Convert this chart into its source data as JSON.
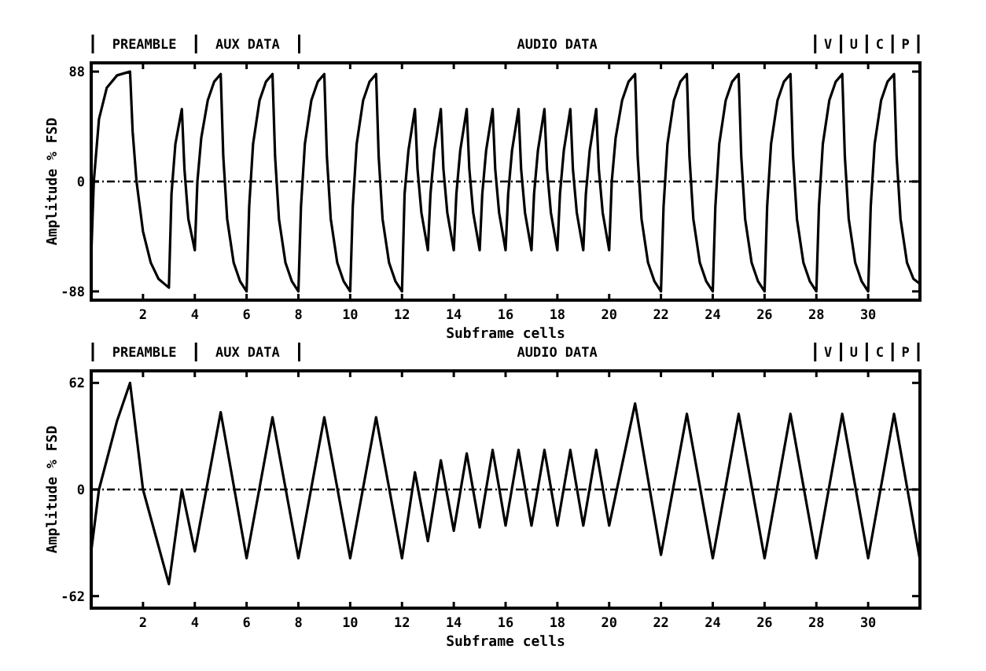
{
  "chart_data": [
    {
      "type": "line",
      "xlabel": "Subframe cells",
      "ylabel": "Amplitude % FSD",
      "xlim": [
        0,
        32
      ],
      "xticks": [
        2,
        4,
        6,
        8,
        10,
        12,
        14,
        16,
        18,
        20,
        22,
        24,
        26,
        28,
        30
      ],
      "ylim": [
        -95,
        95
      ],
      "yticks": [
        -88,
        0,
        88
      ],
      "ref_lines": [
        {
          "axis": "y",
          "value": 0,
          "line_style": "dashed"
        }
      ],
      "annotations": [
        "PREAMBLE",
        "AUX DATA",
        "AUDIO DATA",
        "V",
        "U",
        "C",
        "P"
      ],
      "series": [
        {
          "color": "#000000",
          "x": [
            0,
            0.1,
            0.3,
            0.6,
            1,
            1.5,
            1.6,
            1.75,
            2,
            2.3,
            2.6,
            3,
            3.1,
            3.25,
            3.5,
            3.6,
            3.75,
            4,
            4.1,
            4.25,
            4.5,
            4.75,
            5,
            5.1,
            5.25,
            5.5,
            5.75,
            6,
            6.1,
            6.25,
            6.5,
            6.75,
            7,
            7.1,
            7.25,
            7.5,
            7.75,
            8,
            8.1,
            8.25,
            8.5,
            8.75,
            9,
            9.1,
            9.25,
            9.5,
            9.75,
            10,
            10.1,
            10.25,
            10.5,
            10.75,
            11,
            11.1,
            11.25,
            11.5,
            11.75,
            12,
            12.1,
            12.25,
            12.5,
            12.6,
            12.75,
            13,
            13.1,
            13.25,
            13.5,
            13.6,
            13.75,
            14,
            14.1,
            14.25,
            14.5,
            14.6,
            14.75,
            15,
            15.1,
            15.25,
            15.5,
            15.6,
            15.75,
            16,
            16.1,
            16.25,
            16.5,
            16.6,
            16.75,
            17,
            17.1,
            17.25,
            17.5,
            17.6,
            17.75,
            18,
            18.1,
            18.25,
            18.5,
            18.6,
            18.75,
            19,
            19.1,
            19.25,
            19.5,
            19.6,
            19.75,
            20,
            20.1,
            20.25,
            20.5,
            20.75,
            21,
            21.1,
            21.25,
            21.5,
            21.75,
            22,
            22.1,
            22.25,
            22.5,
            22.75,
            23,
            23.1,
            23.25,
            23.5,
            23.75,
            24,
            24.1,
            24.25,
            24.5,
            24.75,
            25,
            25.1,
            25.25,
            25.5,
            25.75,
            26,
            26.1,
            26.25,
            26.5,
            26.75,
            27,
            27.1,
            27.25,
            27.5,
            27.75,
            28,
            28.1,
            28.25,
            28.5,
            28.75,
            29,
            29.1,
            29.25,
            29.5,
            29.75,
            30,
            30.1,
            30.25,
            30.5,
            30.75,
            31,
            31.1,
            31.25,
            31.5,
            31.75,
            32
          ],
          "values": [
            -60,
            0,
            50,
            75,
            85,
            88,
            40,
            0,
            -40,
            -65,
            -78,
            -85,
            -10,
            30,
            58,
            10,
            -30,
            -55,
            0,
            35,
            65,
            80,
            86,
            20,
            -30,
            -65,
            -80,
            -88,
            -20,
            30,
            65,
            80,
            86,
            20,
            -30,
            -65,
            -80,
            -88,
            -20,
            30,
            65,
            80,
            86,
            20,
            -30,
            -65,
            -80,
            -88,
            -20,
            30,
            65,
            80,
            86,
            20,
            -30,
            -65,
            -80,
            -88,
            -10,
            25,
            58,
            10,
            -25,
            -55,
            -10,
            25,
            58,
            10,
            -25,
            -55,
            -10,
            25,
            58,
            10,
            -25,
            -55,
            -10,
            25,
            58,
            10,
            -25,
            -55,
            -10,
            25,
            58,
            10,
            -25,
            -55,
            -10,
            25,
            58,
            10,
            -25,
            -55,
            -10,
            25,
            58,
            10,
            -25,
            -55,
            -10,
            25,
            58,
            10,
            -25,
            -55,
            0,
            35,
            65,
            80,
            86,
            20,
            -30,
            -65,
            -80,
            -88,
            -20,
            30,
            65,
            80,
            86,
            20,
            -30,
            -65,
            -80,
            -88,
            -20,
            30,
            65,
            80,
            86,
            20,
            -30,
            -65,
            -80,
            -88,
            -20,
            30,
            65,
            80,
            86,
            20,
            -30,
            -65,
            -80,
            -88,
            -20,
            30,
            65,
            80,
            86,
            20,
            -30,
            -65,
            -80,
            -88,
            -20,
            30,
            65,
            80,
            86,
            20,
            -30,
            -65,
            -78,
            -82
          ]
        }
      ]
    },
    {
      "type": "line",
      "xlabel": "Subframe cells",
      "ylabel": "Amplitude % FSD",
      "xlim": [
        0,
        32
      ],
      "xticks": [
        2,
        4,
        6,
        8,
        10,
        12,
        14,
        16,
        18,
        20,
        22,
        24,
        26,
        28,
        30
      ],
      "ylim": [
        -69,
        69
      ],
      "yticks": [
        -62,
        0,
        62
      ],
      "ref_lines": [
        {
          "axis": "y",
          "value": 0,
          "line_style": "dashed"
        }
      ],
      "annotations": [
        "PREAMBLE",
        "AUX DATA",
        "AUDIO DATA",
        "V",
        "U",
        "C",
        "P"
      ],
      "series": [
        {
          "color": "#000000",
          "x": [
            0,
            0.3,
            1,
            1.5,
            2,
            3,
            3.5,
            4,
            5,
            6,
            7,
            8,
            9,
            10,
            11,
            12,
            12.5,
            13,
            13.5,
            14,
            14.5,
            15,
            15.5,
            16,
            16.5,
            17,
            17.5,
            18,
            18.5,
            19,
            19.5,
            20,
            21,
            22,
            23,
            24,
            25,
            26,
            27,
            28,
            29,
            30,
            31,
            32
          ],
          "values": [
            -36,
            0,
            40,
            62,
            0,
            -55,
            0,
            -36,
            45,
            -40,
            42,
            -40,
            42,
            -40,
            42,
            -40,
            10,
            -30,
            17,
            -24,
            21,
            -22,
            23,
            -21,
            23,
            -21,
            23,
            -21,
            23,
            -21,
            23,
            -21,
            50,
            -38,
            44,
            -40,
            44,
            -40,
            44,
            -40,
            44,
            -40,
            44,
            -41
          ]
        }
      ]
    }
  ]
}
